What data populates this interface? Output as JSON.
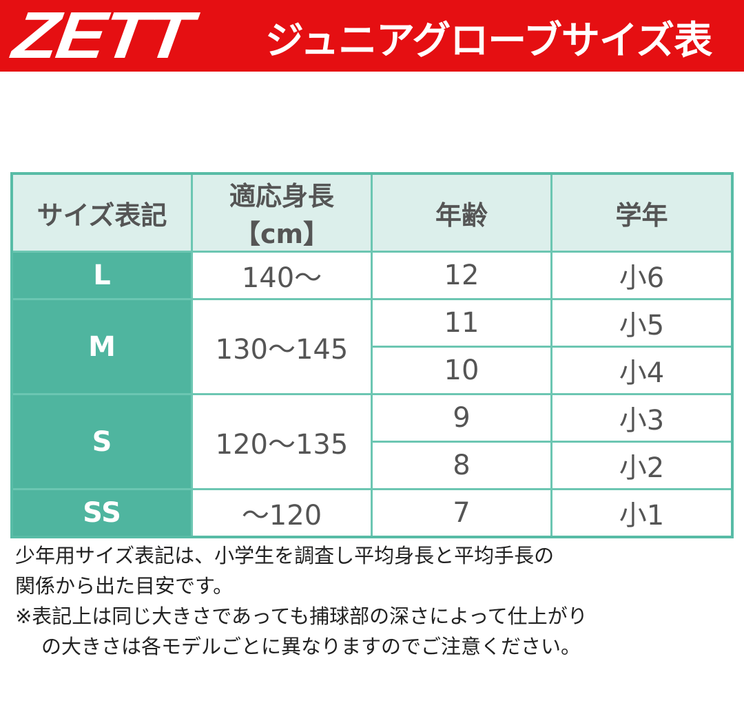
{
  "header": {
    "brand": "ZETT",
    "title": "ジュニアグローブサイズ表",
    "color": "#e50f12"
  },
  "table": {
    "columns": [
      "サイズ表記",
      "適応身長【cm】",
      "年齢",
      "学年"
    ],
    "groups": [
      {
        "size": "L",
        "height": "140〜",
        "rows": [
          {
            "age": "12",
            "grade": "小6"
          }
        ]
      },
      {
        "size": "M",
        "height": "130〜145",
        "rows": [
          {
            "age": "11",
            "grade": "小5"
          },
          {
            "age": "10",
            "grade": "小4"
          }
        ]
      },
      {
        "size": "S",
        "height": "120〜135",
        "rows": [
          {
            "age": "9",
            "grade": "小3"
          },
          {
            "age": "8",
            "grade": "小2"
          }
        ]
      },
      {
        "size": "SS",
        "height": "〜120",
        "rows": [
          {
            "age": "7",
            "grade": "小1"
          }
        ]
      }
    ],
    "accent": "#4fb59f"
  },
  "notes": {
    "line1": "少年用サイズ表記は、小学生を調査し平均身長と平均手長の",
    "line2": "関係から出た目安です。",
    "line3": "※表記上は同じ大きさであっても捕球部の深さによって仕上がり",
    "line4": "の大きさは各モデルごとに異なりますのでご注意ください。"
  }
}
